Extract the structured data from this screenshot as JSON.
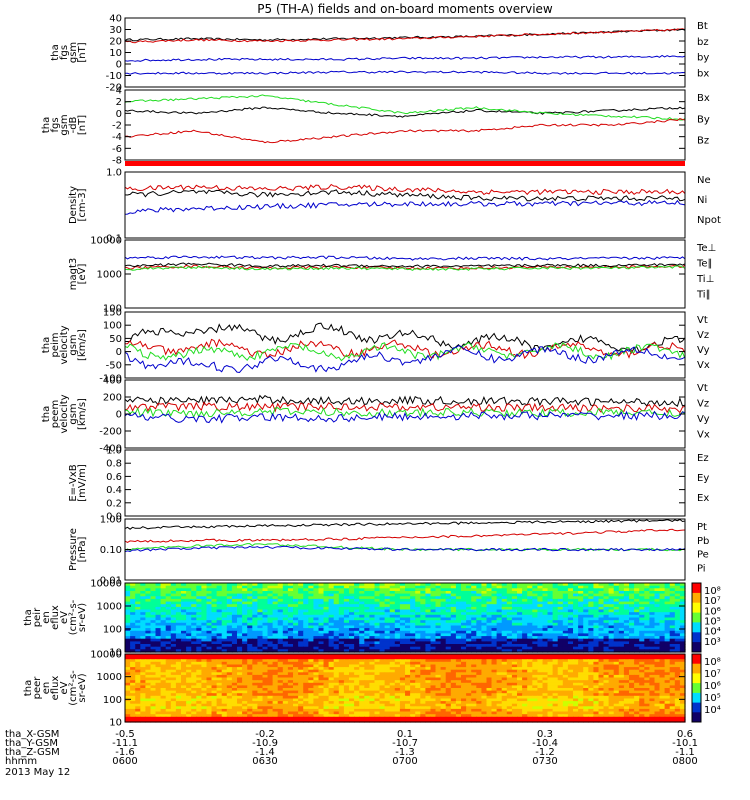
{
  "title": "P5 (TH-A) fields and on-board moments overview",
  "colors": {
    "black": "#000000",
    "red": "#d40000",
    "blue": "#0000cc",
    "green": "#22dd22",
    "white": "#ffffff"
  },
  "chart_data": [
    {
      "type": "line",
      "ylabel": [
        "tha",
        "fgs",
        "gsm",
        "[nT]"
      ],
      "ylim": [
        -20,
        40
      ],
      "yticks": [
        "40",
        "30",
        "20",
        "10",
        "0",
        "-10",
        "-20"
      ],
      "ytick_values": [
        40,
        30,
        20,
        10,
        0,
        -10,
        -20
      ],
      "series": [
        {
          "name": "Bt",
          "color": "#000000",
          "values": [
            21,
            22,
            21,
            22,
            23,
            24,
            26,
            28,
            30
          ]
        },
        {
          "name": "bz",
          "color": "#d40000",
          "values": [
            19,
            21,
            20,
            21,
            22,
            24,
            26,
            28,
            30
          ]
        },
        {
          "name": "by",
          "color": "#0000cc",
          "values": [
            3,
            4,
            4,
            4,
            5,
            5,
            6,
            6,
            7
          ]
        },
        {
          "name": "bx",
          "color": "#0000cc",
          "values": [
            -8,
            -8,
            -8,
            -7,
            -7,
            -7,
            -8,
            -8,
            -8
          ]
        }
      ],
      "legend": [
        "Bt",
        "bz",
        "by",
        "bx"
      ]
    },
    {
      "type": "line",
      "ylabel": [
        "tha",
        "fgs",
        "gsm",
        "-dB",
        "[nT]"
      ],
      "ylim": [
        -8,
        4
      ],
      "yticks": [
        "4",
        "2",
        "0",
        "-2",
        "-4",
        "-6",
        "-8"
      ],
      "ytick_values": [
        4,
        2,
        0,
        -2,
        -4,
        -6,
        -8
      ],
      "series": [
        {
          "name": "Bx",
          "color": "#000000",
          "values": [
            0.5,
            0,
            1,
            0,
            -0.5,
            0.5,
            0,
            0.5,
            1
          ]
        },
        {
          "name": "By",
          "color": "#22dd22",
          "values": [
            2,
            2.5,
            3,
            1.5,
            0,
            1,
            0,
            -0.5,
            -1
          ]
        },
        {
          "name": "Bz",
          "color": "#d40000",
          "values": [
            -4,
            -3,
            -5,
            -4,
            -3,
            -3,
            -2,
            -2,
            -1
          ]
        }
      ],
      "legend": [
        "Bx",
        "By",
        "Bz"
      ]
    },
    {
      "type": "line",
      "ylabel": [
        "Density",
        "[cm-3]"
      ],
      "ylim": [
        0.1,
        1.0
      ],
      "log": true,
      "yticks": [
        "1.0",
        "0.1"
      ],
      "ytick_values": [
        1.0,
        0.1
      ],
      "series": [
        {
          "name": "Ne",
          "color": "#d40000",
          "values": [
            0.55,
            0.6,
            0.55,
            0.6,
            0.55,
            0.5,
            0.5,
            0.5,
            0.5
          ]
        },
        {
          "name": "Ni",
          "color": "#000000",
          "values": [
            0.45,
            0.5,
            0.45,
            0.5,
            0.45,
            0.4,
            0.4,
            0.4,
            0.4
          ]
        },
        {
          "name": "Npot",
          "color": "#0000cc",
          "values": [
            0.25,
            0.28,
            0.3,
            0.32,
            0.33,
            0.33,
            0.33,
            0.34,
            0.34
          ]
        }
      ],
      "legend": [
        "Ne",
        "Ni",
        "Npot"
      ]
    },
    {
      "type": "line",
      "ylabel": [
        "magt3",
        "[eV]"
      ],
      "ylim": [
        100,
        10000
      ],
      "log": true,
      "yticks": [
        "10000",
        "1000",
        "100"
      ],
      "ytick_values": [
        10000,
        1000,
        100
      ],
      "series": [
        {
          "name": "Te⊥",
          "color": "#d40000",
          "values": [
            1500,
            1700,
            1500,
            1600,
            1500,
            1500,
            1600,
            1600,
            1700
          ]
        },
        {
          "name": "Te∥",
          "color": "#000000",
          "values": [
            1700,
            2000,
            1700,
            1800,
            1700,
            1700,
            1800,
            1800,
            1900
          ]
        },
        {
          "name": "Ti⊥",
          "color": "#0000cc",
          "values": [
            3000,
            3200,
            3000,
            3100,
            2800,
            2900,
            2800,
            2900,
            3000
          ]
        },
        {
          "name": "Ti∥",
          "color": "#22dd22",
          "values": [
            1400,
            1600,
            1400,
            1500,
            1400,
            1400,
            1500,
            1500,
            1600
          ]
        }
      ],
      "legend": [
        "Te⊥",
        "Te∥",
        "Ti⊥",
        "Ti∥"
      ]
    },
    {
      "type": "line",
      "ylabel": [
        "tha",
        "peim",
        "velocity",
        "gsm",
        "[km/s]"
      ],
      "ylim": [
        -100,
        150
      ],
      "yticks": [
        "150",
        "100",
        "50",
        "0",
        "-50",
        "-100"
      ],
      "ytick_values": [
        150,
        100,
        50,
        0,
        -50,
        -100
      ],
      "series": [
        {
          "name": "Vt",
          "color": "#000000",
          "values": [
            40,
            90,
            60,
            80,
            50,
            40,
            30,
            30,
            25
          ]
        },
        {
          "name": "Vz",
          "color": "#d40000",
          "values": [
            10,
            20,
            5,
            15,
            10,
            5,
            10,
            5,
            5
          ]
        },
        {
          "name": "Vy",
          "color": "#22dd22",
          "values": [
            0,
            -10,
            5,
            -5,
            0,
            0,
            5,
            0,
            0
          ]
        },
        {
          "name": "Vx",
          "color": "#0000cc",
          "values": [
            -20,
            -60,
            -40,
            -50,
            -20,
            -10,
            -10,
            -10,
            -5
          ]
        }
      ],
      "legend": [
        "Vt",
        "Vz",
        "Vy",
        "Vx"
      ]
    },
    {
      "type": "line",
      "ylabel": [
        "tha",
        "peem",
        "velocity",
        "gsm",
        "[km/s]"
      ],
      "ylim": [
        -400,
        400
      ],
      "yticks": [
        "400",
        "200",
        "0",
        "-200",
        "-400"
      ],
      "ytick_values": [
        400,
        200,
        0,
        -200,
        -400
      ],
      "series": [
        {
          "name": "Vt",
          "color": "#000000",
          "values": [
            150,
            160,
            170,
            150,
            160,
            150,
            150,
            140,
            140
          ]
        },
        {
          "name": "Vz",
          "color": "#d40000",
          "values": [
            80,
            90,
            80,
            90,
            80,
            80,
            70,
            70,
            60
          ]
        },
        {
          "name": "Vy",
          "color": "#22dd22",
          "values": [
            20,
            10,
            30,
            20,
            10,
            20,
            10,
            20,
            10
          ]
        },
        {
          "name": "Vx",
          "color": "#0000cc",
          "values": [
            -30,
            -60,
            -40,
            -50,
            -30,
            -20,
            -20,
            -20,
            -20
          ]
        }
      ],
      "legend": [
        "Vt",
        "Vz",
        "Vy",
        "Vx"
      ]
    },
    {
      "type": "line",
      "ylabel": [
        "E=-VxB",
        "[mV/m]"
      ],
      "ylim": [
        0,
        1
      ],
      "yticks": [
        "1.0",
        "0.8",
        "0.6",
        "0.4",
        "0.2",
        "0.0"
      ],
      "ytick_values": [
        1,
        0.8,
        0.6,
        0.4,
        0.2,
        0
      ],
      "series": [],
      "legend": [
        "Ez",
        "Ey",
        "Ex"
      ],
      "legend_colors": [
        "#d40000",
        "#22dd22",
        "#0000cc"
      ]
    },
    {
      "type": "line",
      "ylabel": [
        "Pressure",
        "[nPa]"
      ],
      "ylim": [
        0.01,
        1.0
      ],
      "log": true,
      "yticks": [
        "1.00",
        "0.10",
        "0.01"
      ],
      "ytick_values": [
        1,
        0.1,
        0.01
      ],
      "series": [
        {
          "name": "Pt",
          "color": "#000000",
          "values": [
            0.5,
            0.55,
            0.6,
            0.65,
            0.7,
            0.75,
            0.8,
            0.85,
            0.9
          ]
        },
        {
          "name": "Pb",
          "color": "#d40000",
          "values": [
            0.18,
            0.2,
            0.2,
            0.22,
            0.25,
            0.28,
            0.32,
            0.38,
            0.45
          ]
        },
        {
          "name": "Pe",
          "color": "#22dd22",
          "values": [
            0.1,
            0.13,
            0.15,
            0.12,
            0.1,
            0.1,
            0.1,
            0.1,
            0.1
          ]
        },
        {
          "name": "Pi",
          "color": "#0000cc",
          "values": [
            0.09,
            0.11,
            0.12,
            0.11,
            0.1,
            0.1,
            0.1,
            0.1,
            0.1
          ]
        }
      ],
      "legend": [
        "Pt",
        "Pb",
        "Pe",
        "Pi"
      ]
    },
    {
      "type": "heatmap",
      "ylabel": [
        "tha",
        "peir",
        "en",
        "eflux",
        "eV",
        "(cm²-s-",
        "sr-eV)"
      ],
      "ylim": [
        10,
        10000
      ],
      "log": true,
      "yticks": [
        "10000",
        "1000",
        "100",
        "10"
      ],
      "ytick_values": [
        10000,
        1000,
        100,
        10
      ],
      "colorbar": {
        "labels": [
          "10⁸",
          "10⁷",
          "10⁶",
          "10⁵",
          "10⁴",
          "10³"
        ]
      }
    },
    {
      "type": "heatmap",
      "ylabel": [
        "tha",
        "peer",
        "en",
        "eflux",
        "eV",
        "(cm²-s-",
        "sr-eV)"
      ],
      "ylim": [
        10,
        10000
      ],
      "log": true,
      "yticks": [
        "10000",
        "1000",
        "100",
        "10"
      ],
      "ytick_values": [
        10000,
        1000,
        100,
        10
      ],
      "colorbar": {
        "labels": [
          "10⁸",
          "10⁷",
          "10⁶",
          "10⁵",
          "10⁴"
        ]
      }
    }
  ],
  "x_axis": {
    "ticks": [
      {
        "x": "-0.5",
        "y": "-11.1",
        "z": "-1.6",
        "t": "0600"
      },
      {
        "x": "-0.2",
        "y": "-10.9",
        "z": "-1.4",
        "t": "0630"
      },
      {
        "x": "0.1",
        "y": "-10.7",
        "z": "-1.3",
        "t": "0700"
      },
      {
        "x": "0.3",
        "y": "-10.4",
        "z": "-1.2",
        "t": "0730"
      },
      {
        "x": "0.6",
        "y": "-10.1",
        "z": "-1.1",
        "t": "0800"
      }
    ],
    "row_labels": [
      "tha_X-GSM",
      "tha_Y-GSM",
      "tha_Z-GSM",
      "hhmm"
    ],
    "date": "2013 May 12"
  }
}
